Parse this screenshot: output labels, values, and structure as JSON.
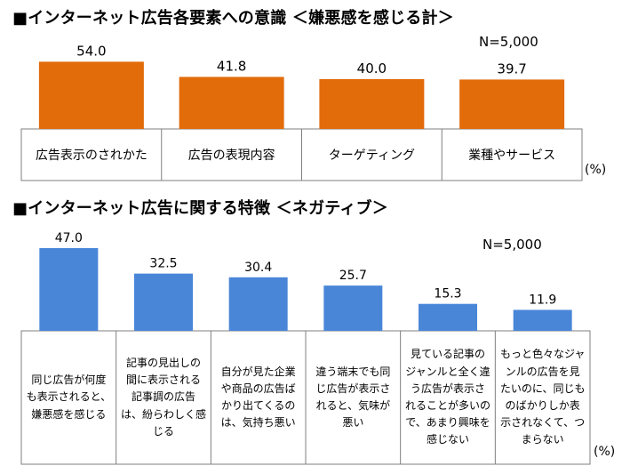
{
  "chart_data": [
    {
      "type": "bar",
      "title": "■インターネット広告各要素への意識 ＜嫌悪感を感じる計＞",
      "sample_note": "N=5,000",
      "unit": "(%)",
      "categories": [
        "広告表示のされかた",
        "広告の表現内容",
        "ターゲティング",
        "業種やサービス"
      ],
      "values": [
        54.0,
        41.8,
        40.0,
        39.7
      ],
      "value_labels": [
        "54.0",
        "41.8",
        "40.0",
        "39.7"
      ],
      "ylim": [
        0,
        60
      ],
      "bar_color": "#E26B0A",
      "grid": false,
      "legend": "none"
    },
    {
      "type": "bar",
      "title": "■インターネット広告に関する特徴 ＜ネガティブ＞",
      "sample_note": "N=5,000",
      "unit": "(%)",
      "categories": [
        "同じ広告が何度も表示されると、嫌悪感を感じる",
        "記事の見出しの間に表示される記事調の広告は、紛らわしく感じる",
        "自分が見た企業や商品の広告ばかり出てくるのは、気持ち悪い",
        "違う端末でも同じ広告が表示されると、気味が悪い",
        "見ている記事のジャンルと全く違う広告が表示されることが多いので、あまり興味を感じない",
        "もっと色々なジャンルの広告を見たいのに、同じものばかりしか表示されなくて、つまらない"
      ],
      "category_lines": [
        [
          "同じ広告が何度",
          "も表示されると、",
          "嫌悪感を感じる"
        ],
        [
          "記事の見出しの",
          "間に表示される",
          "記事調の広告",
          "は、紛らわしく感",
          "じる"
        ],
        [
          "自分が見た企業",
          "や商品の広告ば",
          "かり出てくるの",
          "は、気持ち悪い"
        ],
        [
          "違う端末でも同",
          "じ広告が表示さ",
          "れると、気味が",
          "悪い"
        ],
        [
          "見ている記事の",
          "ジャンルと全く違",
          "う広告が表示さ",
          "れることが多いの",
          "で、あまり興味を",
          "感じない"
        ],
        [
          "もっと色々なジャ",
          "ンルの広告を見",
          "たいのに、同じも",
          "のばかりしか表",
          "示されなくて、つ",
          "まらない"
        ]
      ],
      "values": [
        47.0,
        32.5,
        30.4,
        25.7,
        15.3,
        11.9
      ],
      "value_labels": [
        "47.0",
        "32.5",
        "30.4",
        "25.7",
        "15.3",
        "11.9"
      ],
      "ylim": [
        0,
        60
      ],
      "bar_color": "#4A86D8",
      "grid": false,
      "legend": "none"
    }
  ]
}
